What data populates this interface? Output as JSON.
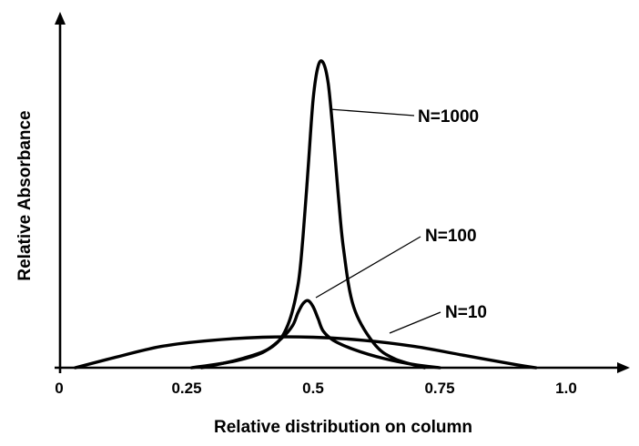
{
  "chart_data": {
    "type": "line",
    "xlabel": "Relative distribution on column",
    "ylabel": "Relative Absorbance",
    "xlim": [
      0,
      1.1
    ],
    "ylim": [
      0,
      1.0
    ],
    "x_ticks": [
      "0",
      "0.25",
      "0.5",
      "0.75",
      "1.0"
    ],
    "grid": false,
    "series": [
      {
        "name": "N=1000",
        "x": [
          0.28,
          0.36,
          0.42,
          0.45,
          0.47,
          0.48,
          0.49,
          0.5,
          0.51,
          0.52,
          0.53,
          0.54,
          0.55,
          0.56,
          0.58,
          0.62,
          0.66,
          0.72
        ],
        "y": [
          0.0,
          0.03,
          0.07,
          0.14,
          0.27,
          0.43,
          0.65,
          0.88,
          0.99,
          1.0,
          0.93,
          0.76,
          0.56,
          0.39,
          0.2,
          0.08,
          0.03,
          0.0
        ]
      },
      {
        "name": "N=100",
        "x": [
          0.26,
          0.34,
          0.4,
          0.44,
          0.46,
          0.47,
          0.48,
          0.49,
          0.5,
          0.51,
          0.52,
          0.54,
          0.58,
          0.64,
          0.7,
          0.75
        ],
        "y": [
          0.0,
          0.02,
          0.05,
          0.1,
          0.14,
          0.18,
          0.21,
          0.22,
          0.2,
          0.16,
          0.12,
          0.09,
          0.06,
          0.03,
          0.01,
          0.0
        ]
      },
      {
        "name": "N=10",
        "x": [
          0.03,
          0.1,
          0.2,
          0.3,
          0.4,
          0.5,
          0.6,
          0.7,
          0.8,
          0.9,
          0.94
        ],
        "y": [
          0.0,
          0.03,
          0.07,
          0.09,
          0.1,
          0.1,
          0.09,
          0.07,
          0.04,
          0.01,
          0.0
        ]
      }
    ]
  }
}
